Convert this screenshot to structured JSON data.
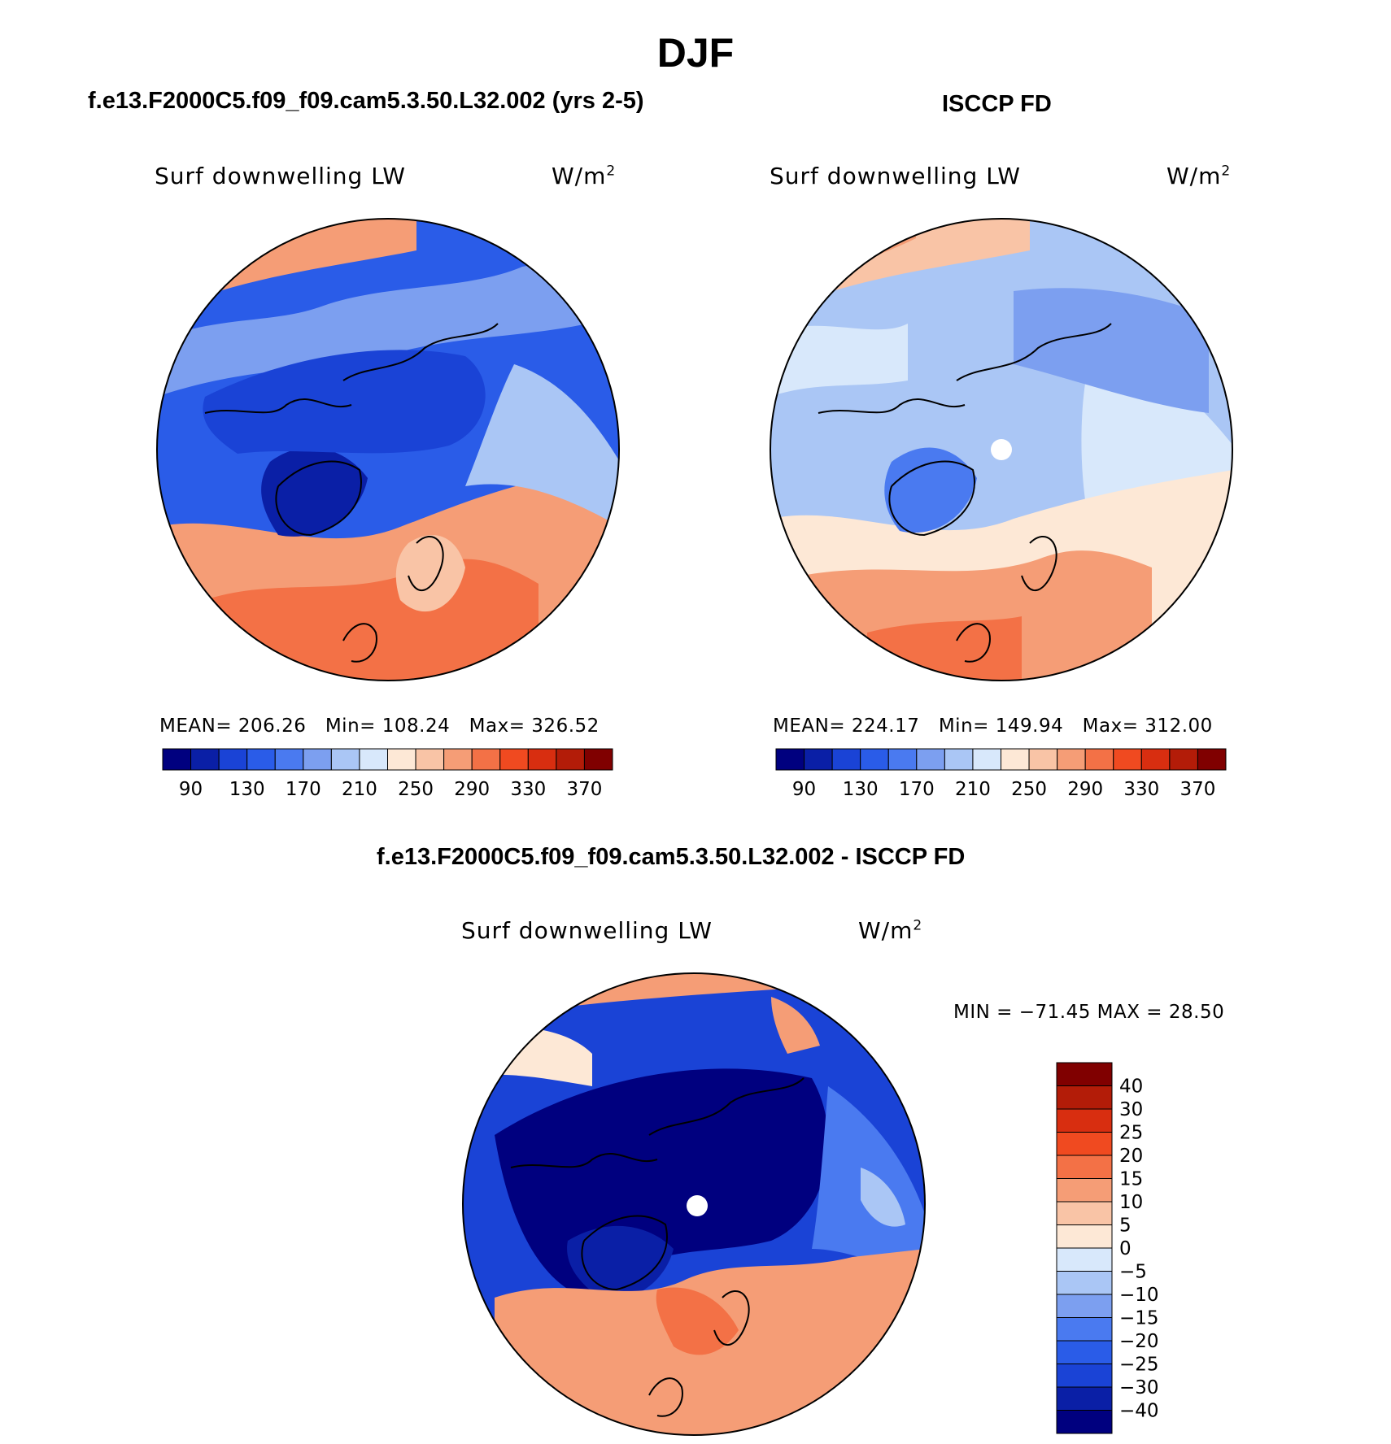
{
  "figure": {
    "season_title": "DJF"
  },
  "panels": {
    "model": {
      "title": "f.e13.F2000C5.f09_f09.cam5.3.50.L32.002 (yrs 2-5)",
      "variable": "Surf downwelling LW",
      "units_base": "W/m",
      "units_exp": "2",
      "stats": {
        "mean_label": "MEAN=",
        "mean": "206.26",
        "min_label": "Min=",
        "min": "108.24",
        "max_label": "Max=",
        "max": "326.52"
      }
    },
    "obs": {
      "title": "ISCCP FD",
      "variable": "Surf downwelling LW",
      "units_base": "W/m",
      "units_exp": "2",
      "stats": {
        "mean_label": "MEAN=",
        "mean": "224.17",
        "min_label": "Min=",
        "min": "149.94",
        "max_label": "Max=",
        "max": "312.00"
      }
    },
    "diff": {
      "title": "f.e13.F2000C5.f09_f09.cam5.3.50.L32.002 - ISCCP FD",
      "variable": "Surf downwelling LW",
      "units_base": "W/m",
      "units_exp": "2",
      "minmax": "MIN = −71.45 MAX =  28.50"
    }
  },
  "colors": {
    "abs_scale": [
      "#00007f",
      "#0a1fa6",
      "#1a43d6",
      "#2a5ce8",
      "#4a7af0",
      "#7c9ff0",
      "#aac6f5",
      "#d8e8fb",
      "#fde8d6",
      "#f9c4a6",
      "#f59d76",
      "#f37146",
      "#f04a20",
      "#d82e10",
      "#b31c08",
      "#800000"
    ],
    "diff_scale": [
      "#00007f",
      "#0a1fa6",
      "#1a43d6",
      "#2a5ce8",
      "#4a7af0",
      "#7c9ff0",
      "#aac6f5",
      "#d8e8fb",
      "#fde8d6",
      "#f9c4a6",
      "#f59d76",
      "#f37146",
      "#f04a20",
      "#d82e10",
      "#b31c08",
      "#800000"
    ],
    "land_outline": "#000000",
    "pole_marker": "#ffffff"
  },
  "chart_data": [
    {
      "type": "heatmap",
      "projection": "north-polar-stereographic",
      "title": "f.e13.F2000C5.f09_f09.cam5.3.50.L32.002 (yrs 2-5)",
      "variable": "Surf downwelling LW",
      "units": "W/m2",
      "mean": 206.26,
      "min": 108.24,
      "max": 326.52,
      "colorbar_ticks": [
        "90",
        "130",
        "170",
        "210",
        "250",
        "290",
        "330",
        "370"
      ],
      "levels": [
        80,
        90,
        110,
        130,
        150,
        170,
        190,
        210,
        230,
        250,
        270,
        290,
        310,
        330,
        350,
        370,
        380
      ]
    },
    {
      "type": "heatmap",
      "projection": "north-polar-stereographic",
      "title": "ISCCP FD",
      "variable": "Surf downwelling LW",
      "units": "W/m2",
      "mean": 224.17,
      "min": 149.94,
      "max": 312.0,
      "colorbar_ticks": [
        "90",
        "130",
        "170",
        "210",
        "250",
        "290",
        "330",
        "370"
      ],
      "levels": [
        80,
        90,
        110,
        130,
        150,
        170,
        190,
        210,
        230,
        250,
        270,
        290,
        310,
        330,
        350,
        370,
        380
      ]
    },
    {
      "type": "heatmap",
      "projection": "north-polar-stereographic",
      "title": "f.e13.F2000C5.f09_f09.cam5.3.50.L32.002 - ISCCP FD",
      "variable": "Surf downwelling LW",
      "units": "W/m2",
      "min": -71.45,
      "max": 28.5,
      "colorbar_ticks": [
        "40",
        "30",
        "25",
        "20",
        "15",
        "10",
        "5",
        "0",
        "−5",
        "−10",
        "−15",
        "−20",
        "−25",
        "−30",
        "−40"
      ]
    }
  ]
}
